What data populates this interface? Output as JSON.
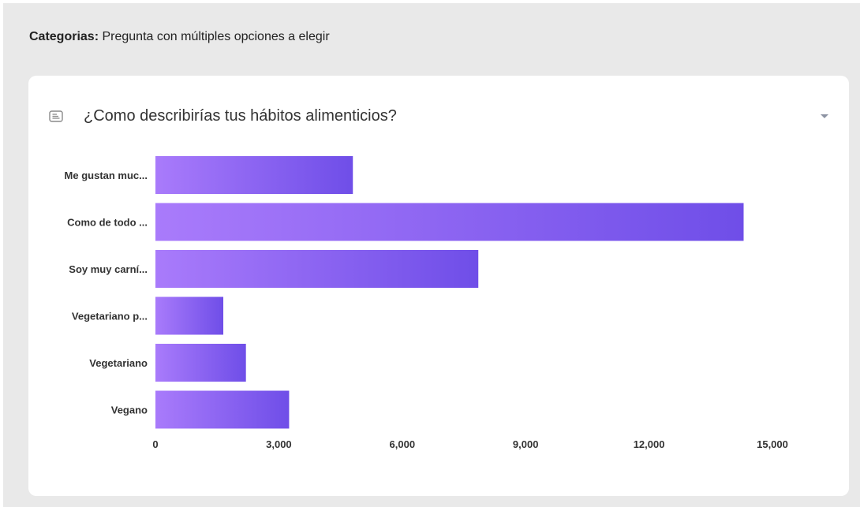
{
  "header": {
    "label": "Categorias:",
    "text": "Pregunta con múltiples opciones a elegir"
  },
  "question": {
    "title": "¿Como describirías tus hábitos alimenticios?",
    "icon": "text-lines-icon",
    "dropdown_icon": "caret-down-icon"
  },
  "colors": {
    "bar_gradient_start": "#a97bfb",
    "bar_gradient_end": "#6f4ee8",
    "panel_bg": "#e9e9e9",
    "card_bg": "#ffffff"
  },
  "chart_data": {
    "type": "bar",
    "orientation": "horizontal",
    "categories": [
      "Me gustan muc...",
      "Como de todo ...",
      "Soy muy carní...",
      "Vegetariano p...",
      "Vegetariano",
      "Vegano"
    ],
    "values": [
      4800,
      14300,
      7850,
      1650,
      2200,
      3250
    ],
    "xlim": [
      0,
      15000
    ],
    "xticks": [
      0,
      3000,
      6000,
      9000,
      12000,
      15000
    ],
    "xtick_labels": [
      "0",
      "3,000",
      "6,000",
      "9,000",
      "12,000",
      "15,000"
    ],
    "grid": false,
    "legend": "none"
  }
}
